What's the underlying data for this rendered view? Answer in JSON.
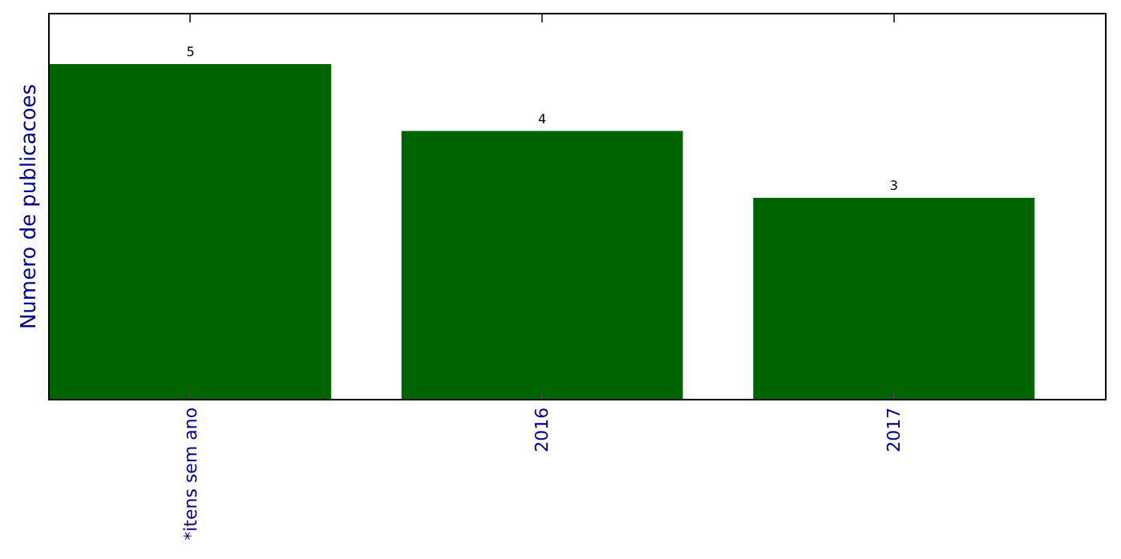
{
  "chart_data": {
    "type": "bar",
    "ylabel": "Numero de publicacoes",
    "categories": [
      "*itens sem ano",
      "2016",
      "2017"
    ],
    "values": [
      5,
      4,
      3
    ],
    "color": "#006400",
    "data_labels": true,
    "legend": false,
    "tick_labels": "x"
  }
}
